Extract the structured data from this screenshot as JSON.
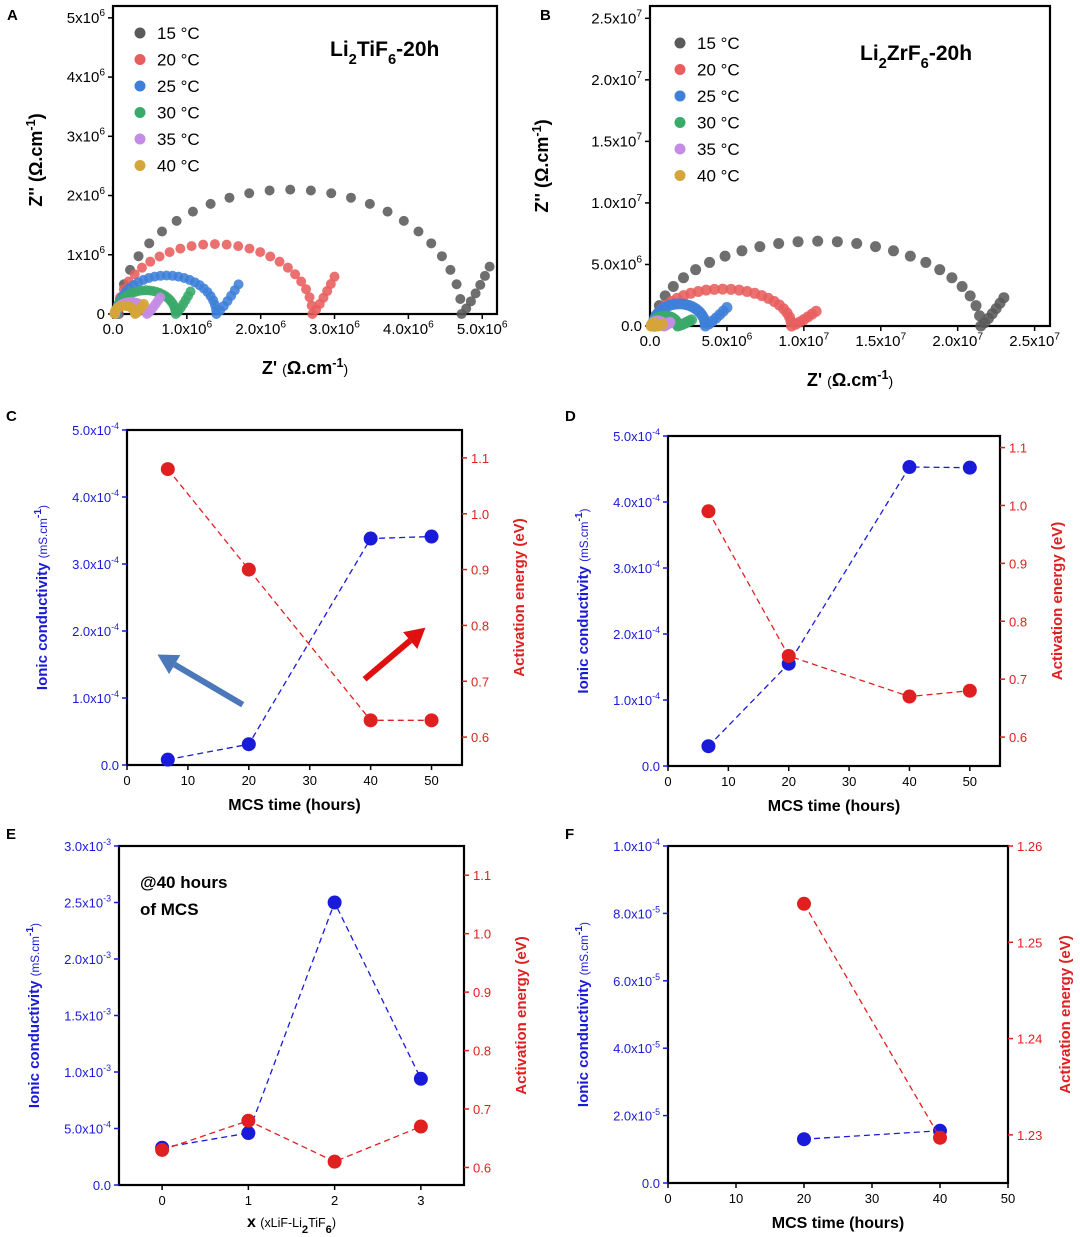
{
  "colors": {
    "blue": "#1a1adb",
    "red": "#e02020",
    "axis": "#000000"
  },
  "chart_data": [
    {
      "panel": "A",
      "type": "scatter",
      "title": "Li2TiF6-20h",
      "xlabel": "Z' (Ω.cm-1)",
      "ylabel": "Z'' (Ω.cm-1)",
      "xlim": [
        0,
        5200000
      ],
      "ylim": [
        0,
        5200000
      ],
      "xticks": [
        0,
        1000000,
        2000000,
        3000000,
        4000000,
        5000000
      ],
      "xtick_labels": [
        "0.0",
        "1.0x10^6",
        "2.0x10^6",
        "3.0x10^6",
        "4.0x10^6",
        "5.0x10^6"
      ],
      "yticks": [
        0,
        1000000,
        2000000,
        3000000,
        4000000,
        5000000
      ],
      "ytick_labels": [
        "0",
        "1x10^6",
        "2x10^6",
        "3x10^6",
        "4x10^6",
        "5x10^6"
      ],
      "legend_position": "top-left",
      "series": [
        {
          "name": "15 °C",
          "color": "#5a5a5a",
          "arc": {
            "r0": 80000,
            "rt": 4720000,
            "peak": 2100000,
            "tail_x": 5100000,
            "tail_y": 800000
          }
        },
        {
          "name": "20 °C",
          "color": "#e85d5d",
          "arc": {
            "r0": 60000,
            "rt": 2700000,
            "peak": 1180000,
            "tail_x": 3000000,
            "tail_y": 630000
          }
        },
        {
          "name": "25 °C",
          "color": "#3d7fd9",
          "arc": {
            "r0": 50000,
            "rt": 1400000,
            "peak": 650000,
            "tail_x": 1700000,
            "tail_y": 500000
          }
        },
        {
          "name": "30 °C",
          "color": "#3aaa6a",
          "arc": {
            "r0": 40000,
            "rt": 850000,
            "peak": 400000,
            "tail_x": 1050000,
            "tail_y": 380000
          }
        },
        {
          "name": "35 °C",
          "color": "#c58ce6",
          "arc": {
            "r0": 30000,
            "rt": 460000,
            "peak": 200000,
            "tail_x": 640000,
            "tail_y": 280000
          }
        },
        {
          "name": "40 °C",
          "color": "#d6a53a",
          "arc": {
            "r0": 20000,
            "rt": 300000,
            "peak": 140000,
            "tail_x": 420000,
            "tail_y": 170000
          }
        }
      ]
    },
    {
      "panel": "B",
      "type": "scatter",
      "title": "Li2ZrF6-20h",
      "xlabel": "Z' (Ω.cm-1)",
      "ylabel": "Z'' (Ω.cm-1)",
      "xlim": [
        0,
        26000000
      ],
      "ylim": [
        0,
        26000000
      ],
      "xticks": [
        0,
        5000000,
        10000000,
        15000000,
        20000000,
        25000000
      ],
      "xtick_labels": [
        "0.0",
        "5.0x10^6",
        "1.0x10^7",
        "1.5x10^7",
        "2.0x10^7",
        "2.5x10^7"
      ],
      "yticks": [
        0,
        5000000,
        10000000,
        15000000,
        20000000,
        25000000
      ],
      "ytick_labels": [
        "0.0",
        "5.0x10^6",
        "1.0x10^7",
        "1.5x10^7",
        "2.0x10^7",
        "2.5x10^7"
      ],
      "legend_position": "top-left",
      "series": [
        {
          "name": "15 °C",
          "color": "#5a5a5a",
          "arc": {
            "r0": 300000,
            "rt": 21500000,
            "peak": 6900000,
            "tail_x": 23000000,
            "tail_y": 2300000
          }
        },
        {
          "name": "20 °C",
          "color": "#e85d5d",
          "arc": {
            "r0": 250000,
            "rt": 9200000,
            "peak": 3000000,
            "tail_x": 10800000,
            "tail_y": 1200000
          }
        },
        {
          "name": "25 °C",
          "color": "#3d7fd9",
          "arc": {
            "r0": 200000,
            "rt": 3600000,
            "peak": 1800000,
            "tail_x": 5000000,
            "tail_y": 1500000
          }
        },
        {
          "name": "30 °C",
          "color": "#3aaa6a",
          "arc": {
            "r0": 150000,
            "rt": 1800000,
            "peak": 800000,
            "tail_x": 2700000,
            "tail_y": 500000
          }
        },
        {
          "name": "35 °C",
          "color": "#c58ce6",
          "arc": {
            "r0": 100000,
            "rt": 900000,
            "peak": 400000,
            "tail_x": 1300000,
            "tail_y": 300000
          }
        },
        {
          "name": "40 °C",
          "color": "#d6a53a",
          "arc": {
            "r0": 80000,
            "rt": 500000,
            "peak": 200000,
            "tail_x": 800000,
            "tail_y": 150000
          }
        }
      ]
    },
    {
      "panel": "C",
      "type": "scatter",
      "xlabel": "MCS time (hours)",
      "ylabel": "Ionic conductivity (mS.cm-1)",
      "y2label": "Activation energy (eV)",
      "xlim": [
        0,
        55
      ],
      "xticks": [
        0,
        10,
        20,
        30,
        40,
        50
      ],
      "ylim": [
        0,
        0.0005
      ],
      "yticks": [
        0,
        0.0001,
        0.0002,
        0.0003,
        0.0004,
        0.0005
      ],
      "ytick_labels": [
        "0.0",
        "1.0x10^-4",
        "2.0x10^-4",
        "3.0x10^-4",
        "4.0x10^-4",
        "5.0x10^-4"
      ],
      "y2lim": [
        0.55,
        1.15
      ],
      "y2ticks": [
        0.6,
        0.7,
        0.8,
        0.9,
        1.0,
        1.1
      ],
      "y2tick_labels": [
        "0.6",
        "0.7",
        "0.8",
        "0.9",
        "1.0",
        "1.1"
      ],
      "series": [
        {
          "axis": "left",
          "color": "blue",
          "x": [
            6.7,
            20,
            40,
            50
          ],
          "y": [
            8e-06,
            3.1e-05,
            0.000338,
            0.000341
          ]
        },
        {
          "axis": "right",
          "color": "red",
          "x": [
            6.7,
            20,
            40,
            50
          ],
          "y": [
            1.08,
            0.9,
            0.63,
            0.63
          ]
        }
      ],
      "annotations": [
        {
          "type": "arrow",
          "color": "#4a78b8",
          "from": [
            19,
            9e-05
          ],
          "to": [
            5,
            0.000165
          ]
        },
        {
          "type": "arrow",
          "color": "#e01010",
          "from": [
            39,
            0.000128
          ],
          "to": [
            49,
            0.000205
          ]
        }
      ]
    },
    {
      "panel": "D",
      "type": "scatter",
      "xlabel": "MCS time (hours)",
      "ylabel": "Ionic conductivity (mS.cm-1)",
      "y2label": "Activation energy (eV)",
      "xlim": [
        0,
        55
      ],
      "xticks": [
        0,
        10,
        20,
        30,
        40,
        50
      ],
      "ylim": [
        0,
        0.0005
      ],
      "yticks": [
        0,
        0.0001,
        0.0002,
        0.0003,
        0.0004,
        0.0005
      ],
      "ytick_labels": [
        "0.0",
        "1.0x10^-4",
        "2.0x10^-4",
        "3.0x10^-4",
        "4.0x10^-4",
        "5.0x10^-4"
      ],
      "y2lim": [
        0.55,
        1.12
      ],
      "y2ticks": [
        0.6,
        0.7,
        0.8,
        0.9,
        1.0,
        1.1
      ],
      "y2tick_labels": [
        "0.6",
        "0.7",
        "0.8",
        "0.9",
        "1.0",
        "1.1"
      ],
      "series": [
        {
          "axis": "left",
          "color": "blue",
          "x": [
            6.7,
            20,
            40,
            50
          ],
          "y": [
            3e-05,
            0.000155,
            0.000453,
            0.000452
          ]
        },
        {
          "axis": "right",
          "color": "red",
          "x": [
            6.7,
            20,
            40,
            50
          ],
          "y": [
            0.99,
            0.74,
            0.67,
            0.68
          ]
        }
      ]
    },
    {
      "panel": "E",
      "type": "scatter",
      "xlabel": "x (xLiF-Li2TiF6)",
      "ylabel": "Ionic conductivity (mS.cm-1)",
      "y2label": "Activation energy (eV)",
      "xlim": [
        -0.5,
        3.5
      ],
      "xticks": [
        0,
        1,
        2,
        3
      ],
      "ylim": [
        0,
        0.003
      ],
      "yticks": [
        0,
        0.0005,
        0.001,
        0.0015,
        0.002,
        0.0025,
        0.003
      ],
      "ytick_labels": [
        "0.0",
        "5.0x10^-4",
        "1.0x10^-3",
        "1.5x10^-3",
        "2.0x10^-3",
        "2.5x10^-3",
        "3.0x10^-3"
      ],
      "y2lim": [
        0.57,
        1.15
      ],
      "y2ticks": [
        0.6,
        0.7,
        0.8,
        0.9,
        1.0,
        1.1
      ],
      "y2tick_labels": [
        "0.6",
        "0.7",
        "0.8",
        "0.9",
        "1.0",
        "1.1"
      ],
      "annotation_text": [
        "@40 hours",
        "of MCS"
      ],
      "series": [
        {
          "axis": "left",
          "color": "blue",
          "x": [
            0,
            1,
            2,
            3
          ],
          "y": [
            0.00033,
            0.00046,
            0.0025,
            0.00094
          ]
        },
        {
          "axis": "right",
          "color": "red",
          "x": [
            0,
            1,
            2,
            3
          ],
          "y": [
            0.63,
            0.68,
            0.61,
            0.67
          ]
        }
      ]
    },
    {
      "panel": "F",
      "type": "scatter",
      "xlabel": "MCS time (hours)",
      "ylabel": "Ionic conductivity (mS.cm-1)",
      "y2label": "Activation energy (eV)",
      "xlim": [
        0,
        50
      ],
      "xticks": [
        0,
        10,
        20,
        30,
        40,
        50
      ],
      "ylim": [
        0,
        0.0001
      ],
      "yticks": [
        0,
        2e-05,
        4e-05,
        6e-05,
        8e-05,
        0.0001
      ],
      "ytick_labels": [
        "0.0",
        "2.0x10^-5",
        "4.0x10^-5",
        "6.0x10^-5",
        "8.0x10^-5",
        "1.0x10^-4"
      ],
      "y2lim": [
        1.225,
        1.26
      ],
      "y2ticks": [
        1.23,
        1.24,
        1.25,
        1.26
      ],
      "y2tick_labels": [
        "1.23",
        "1.24",
        "1.25",
        "1.26"
      ],
      "series": [
        {
          "axis": "left",
          "color": "blue",
          "x": [
            20,
            40
          ],
          "y": [
            1.3e-05,
            1.55e-05
          ]
        },
        {
          "axis": "right",
          "color": "red",
          "x": [
            20,
            40
          ],
          "y": [
            1.254,
            1.2297
          ]
        }
      ]
    }
  ]
}
